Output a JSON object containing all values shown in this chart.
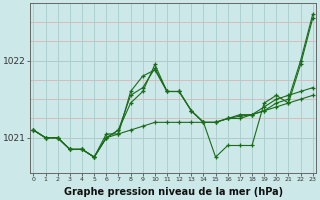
{
  "bg_color": "#cce8e8",
  "grid_color": "#aacccc",
  "line_color": "#1a6b1a",
  "marker_color": "#1a6b1a",
  "xlabel": "Graphe pression niveau de la mer (hPa)",
  "xlabel_fontsize": 7,
  "yticks": [
    1021,
    1022
  ],
  "xticks": [
    0,
    1,
    2,
    3,
    4,
    5,
    6,
    7,
    8,
    9,
    10,
    11,
    12,
    13,
    14,
    15,
    16,
    17,
    18,
    19,
    20,
    21,
    22,
    23
  ],
  "xlim": [
    -0.3,
    23.3
  ],
  "ylim": [
    1020.55,
    1022.75
  ],
  "series": [
    [
      1021.1,
      1021.0,
      1021.0,
      1020.85,
      1020.85,
      1020.75,
      1021.0,
      1021.05,
      1021.1,
      1021.15,
      1021.2,
      1021.2,
      1021.2,
      1021.2,
      1021.2,
      1021.2,
      1021.25,
      1021.3,
      1021.3,
      1021.35,
      1021.4,
      1021.45,
      1021.5,
      1021.55
    ],
    [
      1021.1,
      1021.0,
      1021.0,
      1020.85,
      1020.85,
      1020.75,
      1021.0,
      1021.1,
      1021.55,
      1021.65,
      1021.9,
      1021.6,
      1021.6,
      1021.35,
      1021.2,
      1020.75,
      1020.9,
      1020.9,
      1020.9,
      1021.45,
      1021.55,
      1021.45,
      1021.95,
      1022.55
    ],
    [
      1021.1,
      1021.0,
      1021.0,
      1020.85,
      1020.85,
      1020.75,
      1021.05,
      1021.05,
      1021.6,
      1021.8,
      1021.88,
      1021.6,
      1021.6,
      1021.35,
      1021.2,
      1021.2,
      1021.25,
      1021.25,
      1021.3,
      1021.35,
      1021.45,
      1021.5,
      1022.0,
      1022.6
    ],
    [
      1021.1,
      1021.0,
      1021.0,
      1020.85,
      1020.85,
      1020.75,
      1021.0,
      1021.1,
      1021.45,
      1021.6,
      1021.95,
      1021.6,
      1021.6,
      1021.35,
      1021.2,
      1021.2,
      1021.25,
      1021.28,
      1021.3,
      1021.4,
      1021.5,
      1021.55,
      1021.6,
      1021.65
    ]
  ]
}
